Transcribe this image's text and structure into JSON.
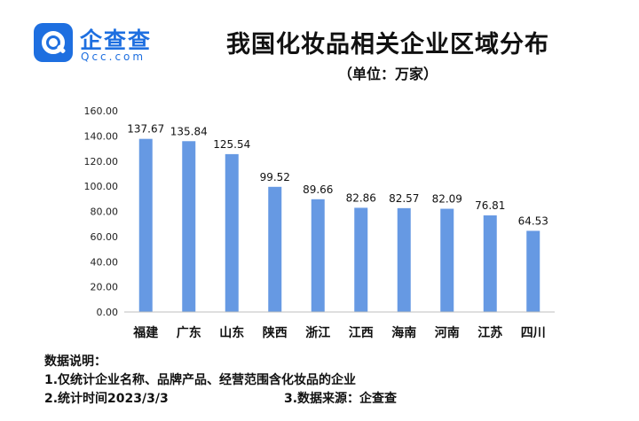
{
  "logo": {
    "cn": "企查查",
    "en": "Qcc.com",
    "mark_icon": "qcc-logo-icon",
    "color": "#1e6fe0"
  },
  "title": "我国化妆品相关企业区域分布",
  "subtitle": "（单位：万家）",
  "chart_data": {
    "type": "bar",
    "title": "我国化妆品相关企业区域分布",
    "unit": "（单位：万家）",
    "categories": [
      "福建",
      "广东",
      "山东",
      "陕西",
      "浙江",
      "江西",
      "海南",
      "河南",
      "江苏",
      "四川"
    ],
    "values": [
      137.67,
      135.84,
      125.54,
      99.52,
      89.66,
      82.86,
      82.57,
      82.09,
      76.81,
      64.53
    ],
    "value_labels": [
      "137.67",
      "135.84",
      "125.54",
      "99.52",
      "89.66",
      "82.86",
      "82.57",
      "82.09",
      "76.81",
      "64.53"
    ],
    "yticks": [
      "0.00",
      "20.00",
      "40.00",
      "60.00",
      "80.00",
      "100.00",
      "120.00",
      "140.00",
      "160.00"
    ],
    "ylim": [
      0,
      160
    ],
    "grid": false,
    "bar_color": "#6699e3"
  },
  "notes": {
    "heading": "数据说明：",
    "line1": "1.仅统计企业名称、品牌产品、经营范围含化妆品的企业",
    "line2": "2.统计时间2023/3/3",
    "line3": "3.数据来源：企查查"
  }
}
